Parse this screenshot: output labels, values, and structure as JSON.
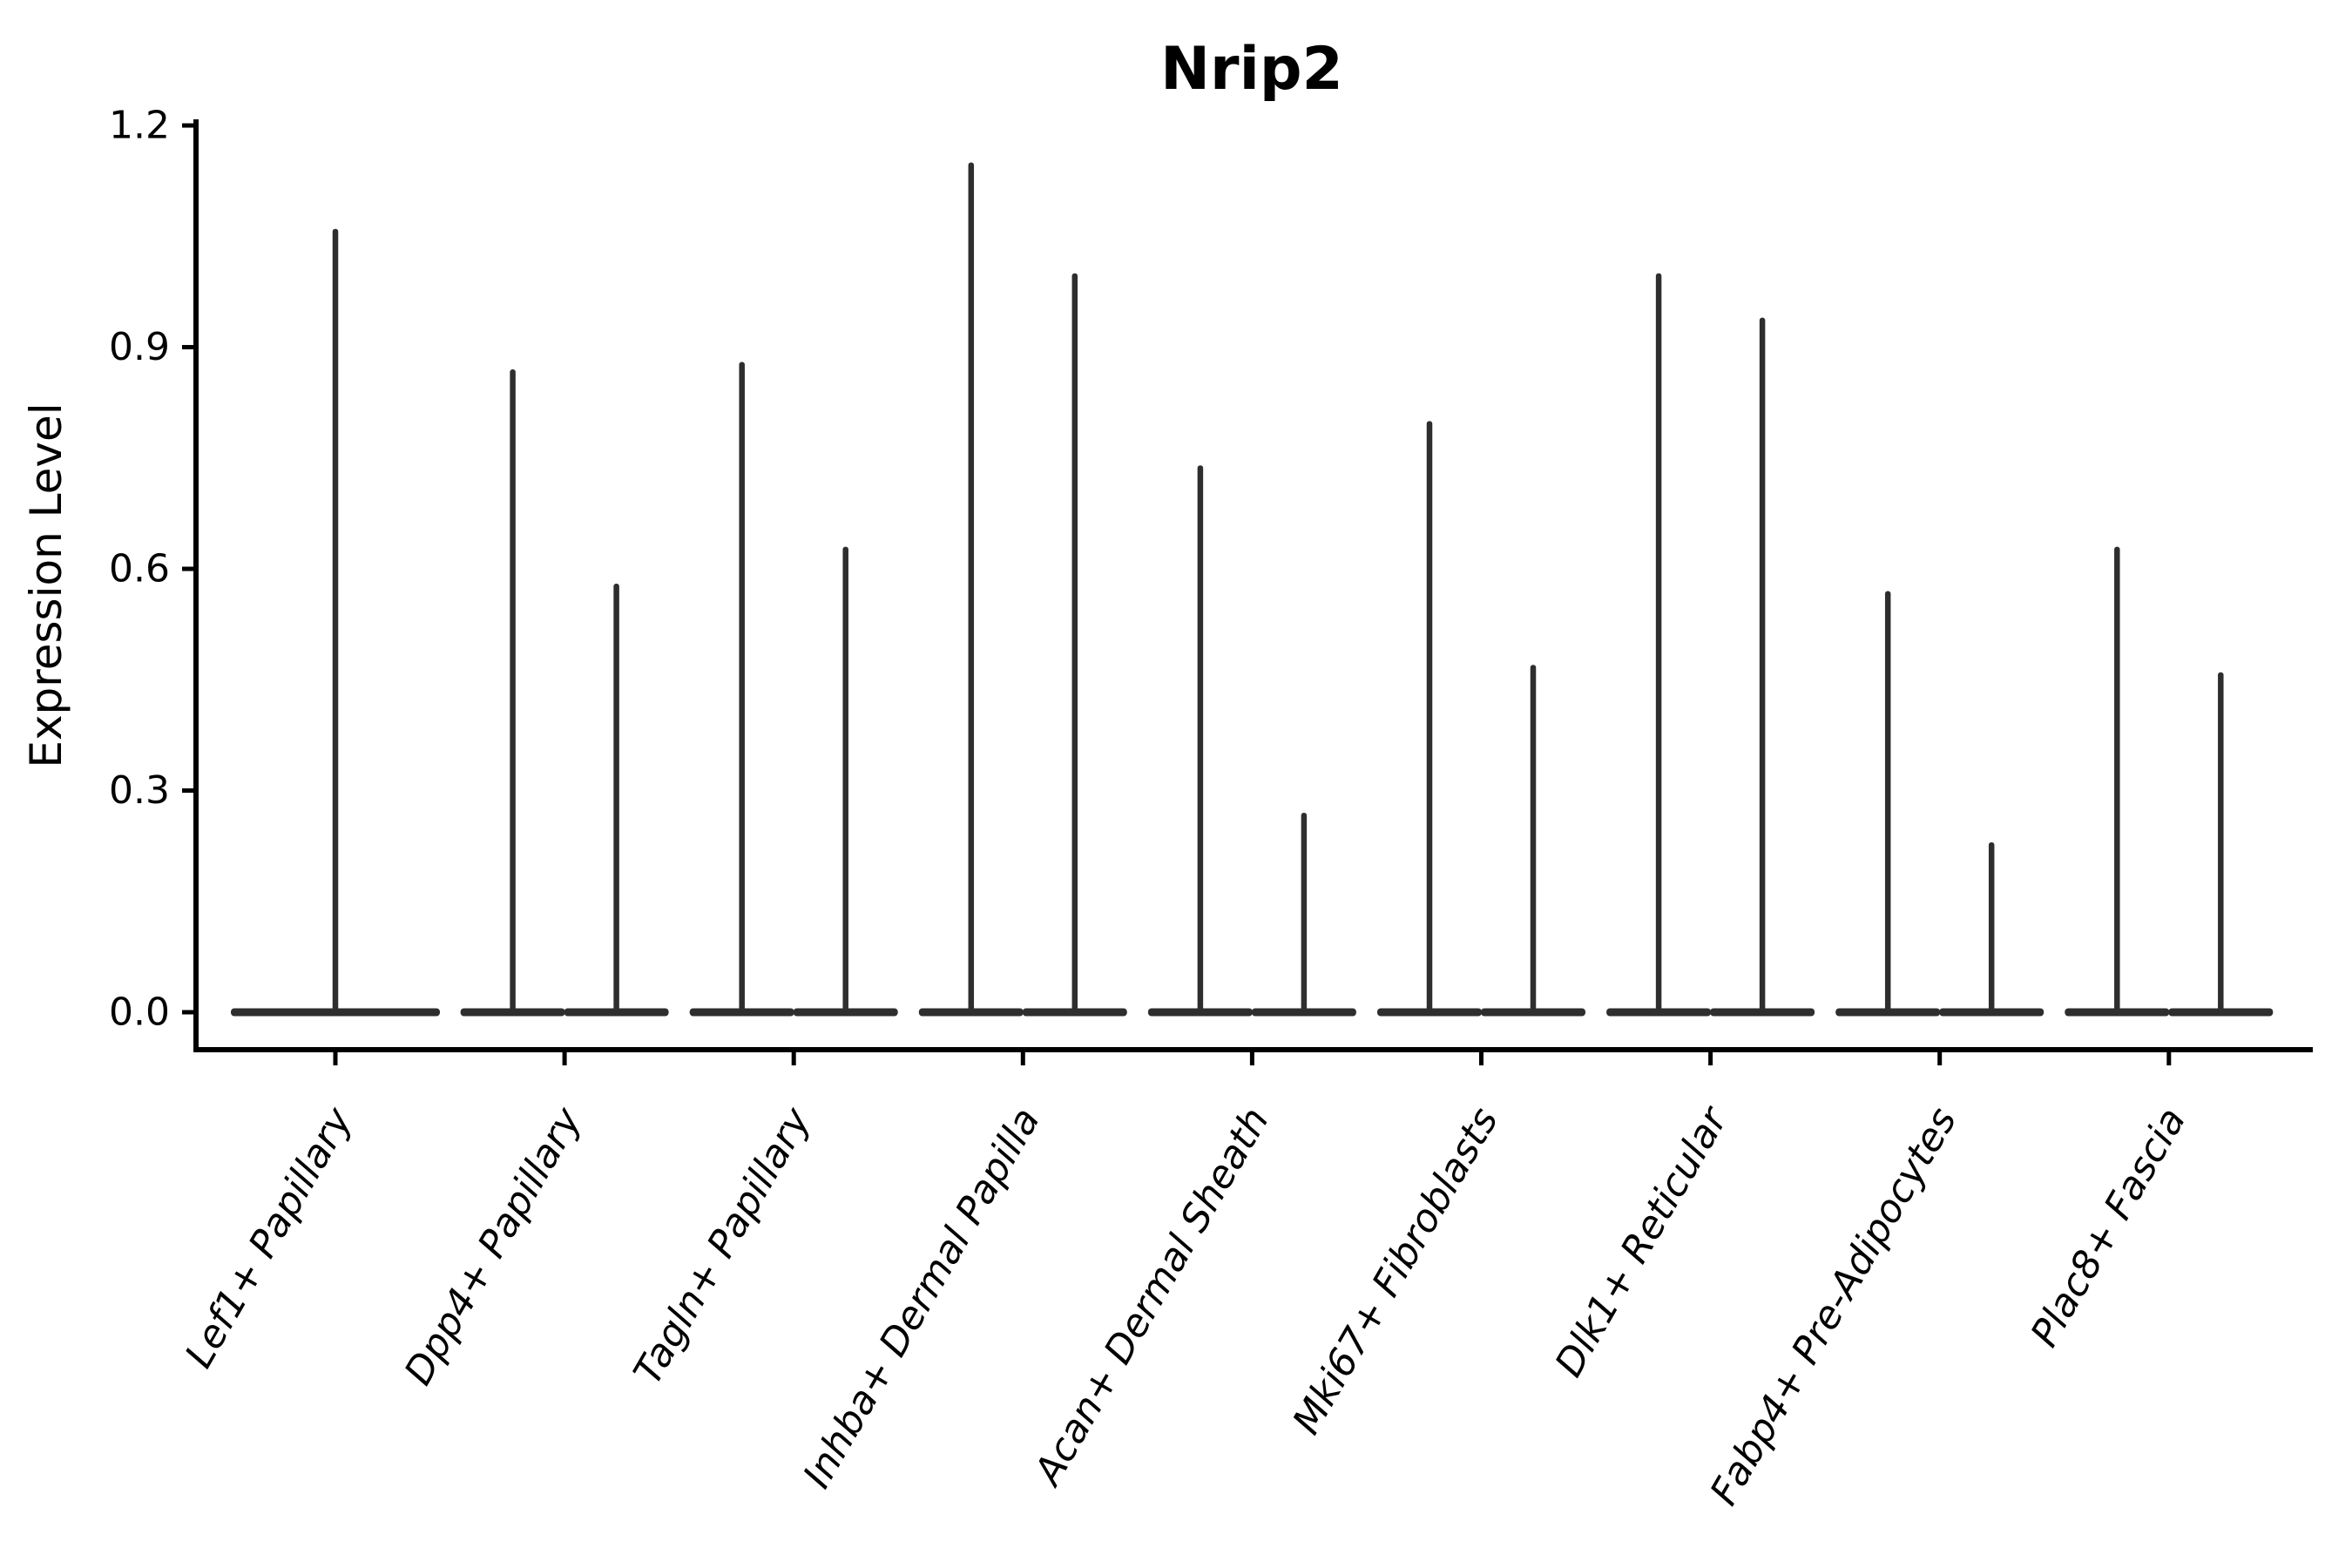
{
  "chart_data": {
    "type": "violin",
    "title": "Nrip2",
    "ylabel": "Expression Level",
    "xlabel": "",
    "ylim": [
      -0.05,
      1.2
    ],
    "yticks": [
      0.0,
      0.3,
      0.6,
      0.9,
      1.2
    ],
    "ytick_labels": [
      "0.0",
      "0.3",
      "0.6",
      "0.9",
      "1.2"
    ],
    "grid": false,
    "legend_position": "none",
    "categories": [
      "Lef1+ Papillary",
      "Dpp4+ Papillary",
      "Tagln+ Papillary",
      "Inhba+ Dermal Papilla",
      "Acan+ Dermal Sheath",
      "Mki67+ Fibroblasts",
      "Dlk1+ Reticular",
      "Fabp4+ Pre-Adipocytes",
      "Plac8+ Fascia"
    ],
    "violin_max_expression": [
      [
        1.06
      ],
      [
        0.87,
        0.58
      ],
      [
        0.88,
        0.63
      ],
      [
        1.15,
        1.0
      ],
      [
        0.74,
        0.27
      ],
      [
        0.8,
        0.47
      ],
      [
        1.0,
        0.94
      ],
      [
        0.57,
        0.23
      ],
      [
        0.63,
        0.46
      ]
    ],
    "baseline_value": 0.0,
    "description": "Narrow spike violins: wide flat base at expression 0 with a thin vertical peak per violin; first category has one full-width violin, all others have two half-width violins",
    "colors": {
      "violin_line": "#2e2e2e",
      "axis": "#000000",
      "background": "#ffffff"
    }
  }
}
